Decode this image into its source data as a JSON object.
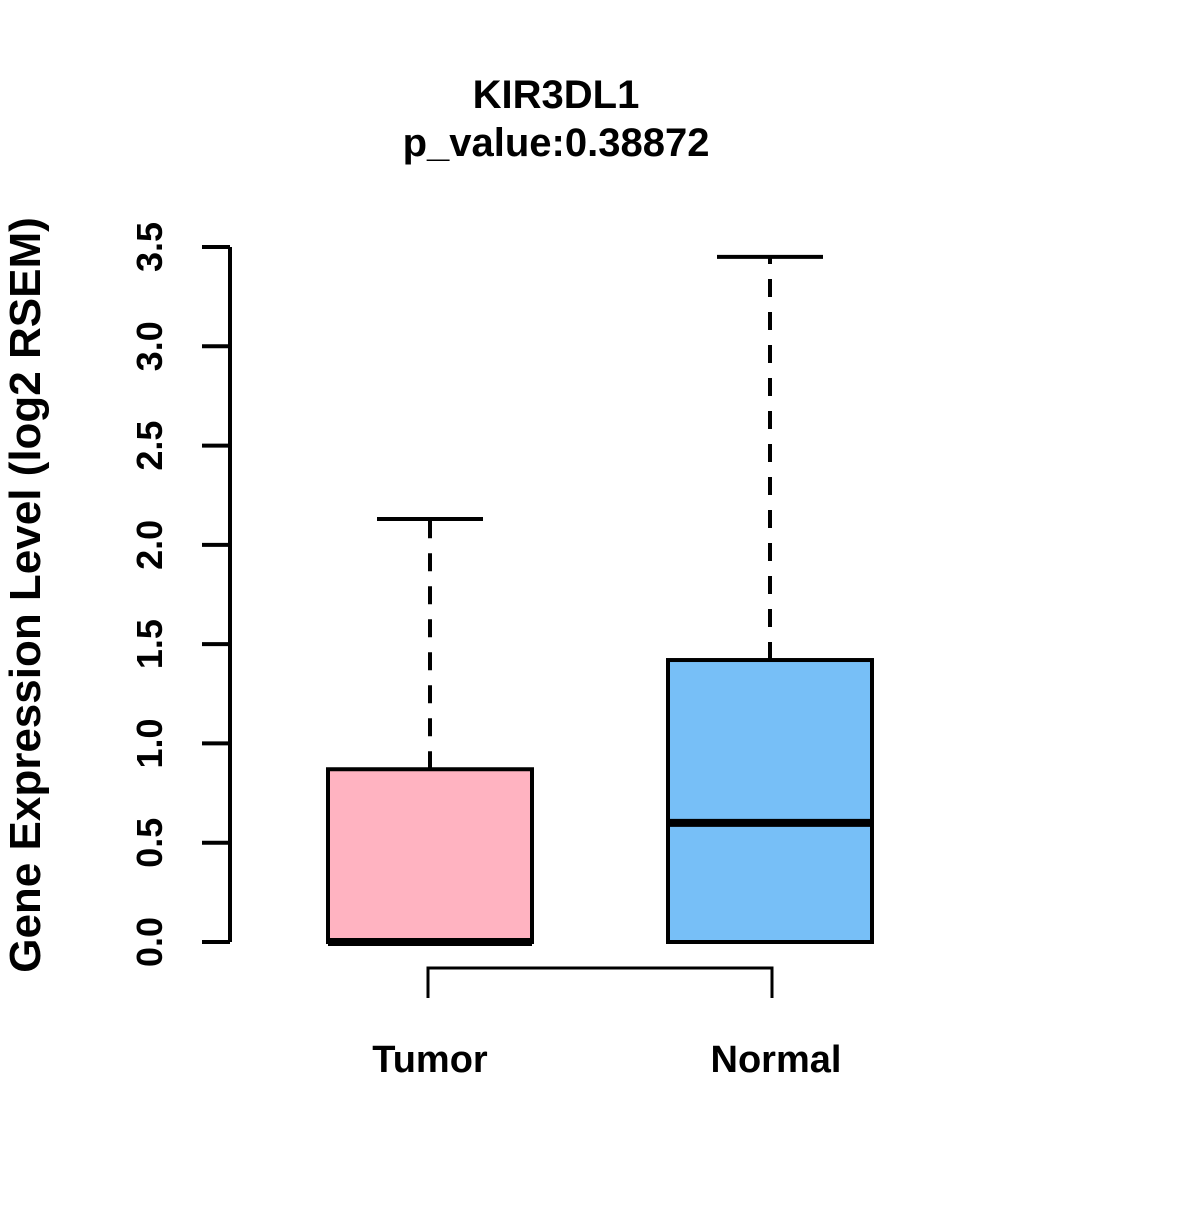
{
  "figure": {
    "background": "#ffffff",
    "axis_color": "#000000",
    "text_color": "#000000"
  },
  "chart_data": {
    "type": "boxplot",
    "title": "KIR3DL1",
    "subtitle": "p_value:0.38872",
    "p_value": 0.38872,
    "gene": "KIR3DL1",
    "xlabel": "",
    "ylabel": "Gene Expression Level (log2 RSEM)",
    "ylim": [
      0,
      3.5
    ],
    "yticks": [
      0,
      0.5,
      1,
      1.5,
      2,
      2.5,
      3,
      3.5
    ],
    "ytick_labels": [
      "0.0",
      "0.5",
      "1.0",
      "1.5",
      "2.0",
      "2.5",
      "3.0",
      "3.5"
    ],
    "grid": false,
    "legend": "none",
    "categories": [
      "Tumor",
      "Normal"
    ],
    "series": [
      {
        "name": "Tumor",
        "color": "#FFB3C1",
        "whisker_low": 0.0,
        "q1": 0.0,
        "median": 0.0,
        "q3": 0.87,
        "whisker_high": 2.13
      },
      {
        "name": "Normal",
        "color": "#77BFF7",
        "whisker_low": 0.0,
        "q1": 0.0,
        "median": 0.6,
        "q3": 1.42,
        "whisker_high": 3.45
      }
    ],
    "comparison_bracket": {
      "groups": [
        "Tumor",
        "Normal"
      ],
      "label": ""
    }
  }
}
